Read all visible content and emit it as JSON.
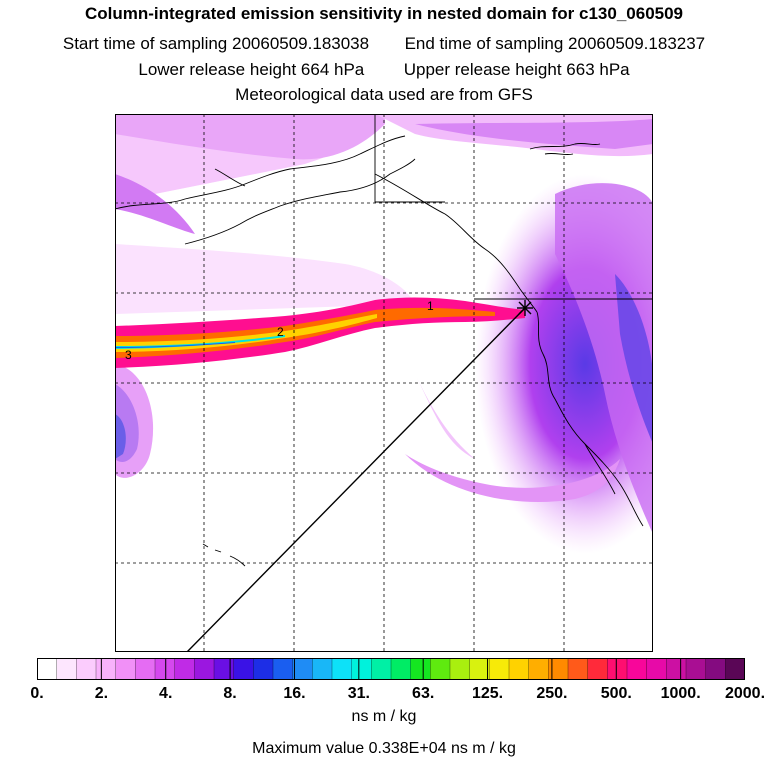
{
  "header": {
    "title": "Column-integrated emission sensitivity in nested domain for c130_060509",
    "start_label": "Start time of sampling",
    "start_value": "20060509.183038",
    "end_label": "End time of sampling",
    "end_value": "20060509.183237",
    "lower_label": "Lower release height",
    "lower_value": "664 hPa",
    "upper_label": "Upper release height",
    "upper_value": "663 hPa",
    "met_line": "Meteorological data used are from GFS"
  },
  "map": {
    "plume_markers": [
      "1",
      "2",
      "3"
    ]
  },
  "colorbar": {
    "colors": [
      "#ffffff",
      "#fde6fe",
      "#fbccfd",
      "#f8b2fb",
      "#f190f7",
      "#e56cf3",
      "#d548ee",
      "#c02be6",
      "#9b17e0",
      "#6a0fe4",
      "#3a12e6",
      "#1d2ee6",
      "#1a5ef0",
      "#1f8cf5",
      "#19b7f7",
      "#0de1f8",
      "#00f2dc",
      "#00f0a5",
      "#00ec65",
      "#15e621",
      "#5fea0f",
      "#a9ef0f",
      "#d8f20f",
      "#f7ea08",
      "#ffd200",
      "#ffae00",
      "#ff8a00",
      "#ff5a1a",
      "#ff2a3a",
      "#ff0e70",
      "#f8069a",
      "#e70aa8",
      "#cc10a3",
      "#a90e93",
      "#840b80",
      "#5a0656"
    ],
    "ticks": [
      "0.",
      "2.",
      "4.",
      "8.",
      "16.",
      "31.",
      "63.",
      "125.",
      "250.",
      "500.",
      "1000.",
      "2000."
    ],
    "units": "ns m / kg"
  },
  "footer": {
    "max_label": "Maximum value",
    "max_value": "0.338E+04 ns m / kg"
  }
}
